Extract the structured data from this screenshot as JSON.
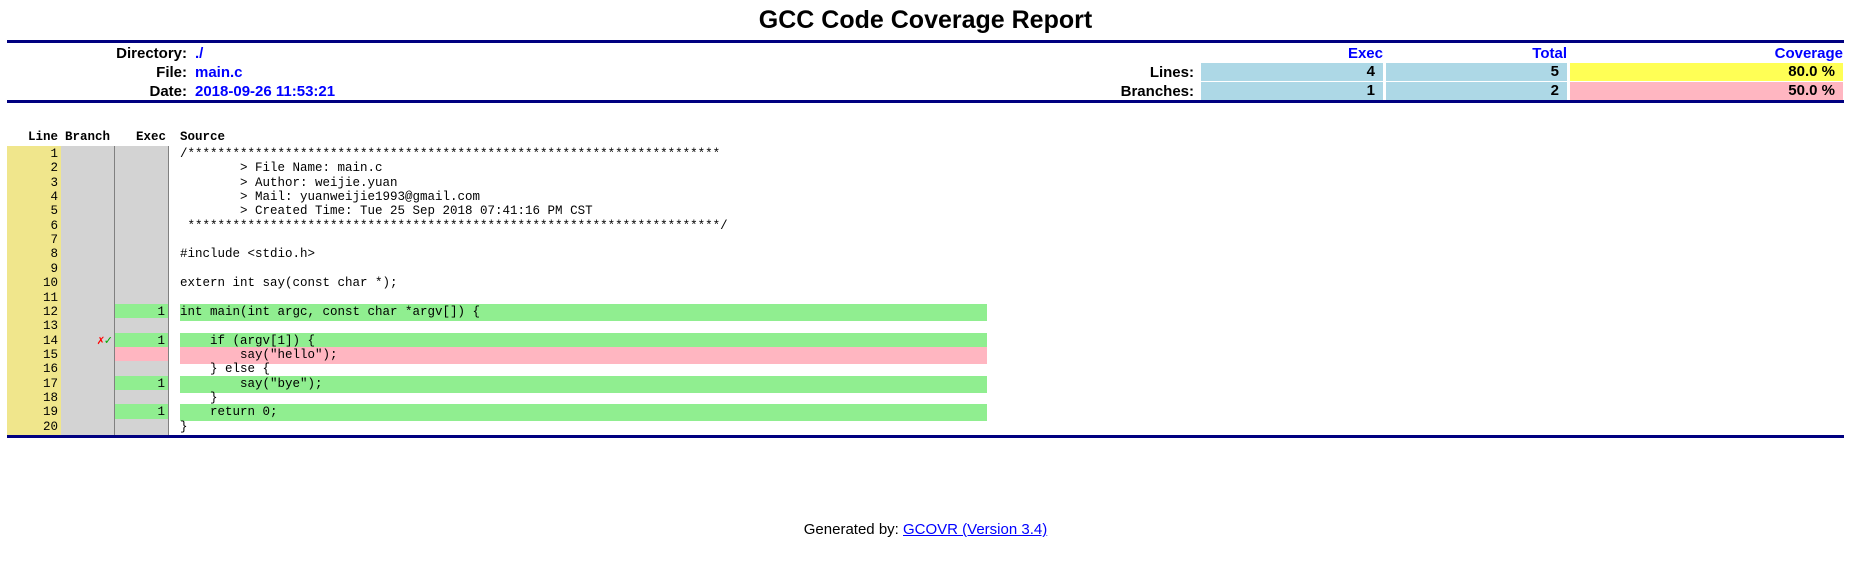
{
  "title": "GCC Code Coverage Report",
  "info": {
    "directory_label": "Directory:",
    "directory_value": "./",
    "file_label": "File:",
    "file_value": "main.c",
    "date_label": "Date:",
    "date_value": "2018-09-26 11:53:21"
  },
  "summary": {
    "col_exec": "Exec",
    "col_total": "Total",
    "col_coverage": "Coverage",
    "lines_label": "Lines:",
    "lines_exec": "4",
    "lines_total": "5",
    "lines_coverage": "80.0 %",
    "branches_label": "Branches:",
    "branches_exec": "1",
    "branches_total": "2",
    "branches_coverage": "50.0 %",
    "colors": {
      "count_bg": "#add8e6",
      "high_bg": "#ffff55",
      "low_bg": "#ffb6c1"
    }
  },
  "table_headers": {
    "line": "Line",
    "branch": "Branch",
    "exec": "Exec",
    "source": "Source"
  },
  "lines": [
    {
      "n": "1",
      "branch": "",
      "exec": "",
      "status": "none",
      "src": "/***********************************************************************"
    },
    {
      "n": "2",
      "branch": "",
      "exec": "",
      "status": "none",
      "src": "        > File Name: main.c"
    },
    {
      "n": "3",
      "branch": "",
      "exec": "",
      "status": "none",
      "src": "        > Author: weijie.yuan"
    },
    {
      "n": "4",
      "branch": "",
      "exec": "",
      "status": "none",
      "src": "        > Mail: yuanweijie1993@gmail.com"
    },
    {
      "n": "5",
      "branch": "",
      "exec": "",
      "status": "none",
      "src": "        > Created Time: Tue 25 Sep 2018 07:41:16 PM CST"
    },
    {
      "n": "6",
      "branch": "",
      "exec": "",
      "status": "none",
      "src": " ***********************************************************************/"
    },
    {
      "n": "7",
      "branch": "",
      "exec": "",
      "status": "none",
      "src": ""
    },
    {
      "n": "8",
      "branch": "",
      "exec": "",
      "status": "none",
      "src": "#include <stdio.h>"
    },
    {
      "n": "9",
      "branch": "",
      "exec": "",
      "status": "none",
      "src": ""
    },
    {
      "n": "10",
      "branch": "",
      "exec": "",
      "status": "none",
      "src": "extern int say(const char *);"
    },
    {
      "n": "11",
      "branch": "",
      "exec": "",
      "status": "none",
      "src": ""
    },
    {
      "n": "12",
      "branch": "",
      "exec": "1",
      "status": "covered",
      "src": "int main(int argc, const char *argv[]) {"
    },
    {
      "n": "13",
      "branch": "",
      "exec": "",
      "status": "none",
      "src": ""
    },
    {
      "n": "14",
      "branch": "✗✓",
      "exec": "1",
      "status": "covered",
      "src": "    if (argv[1]) {"
    },
    {
      "n": "15",
      "branch": "",
      "exec": "",
      "status": "uncovered",
      "src": "        say(\"hello\");"
    },
    {
      "n": "16",
      "branch": "",
      "exec": "",
      "status": "none",
      "src": "    } else {"
    },
    {
      "n": "17",
      "branch": "",
      "exec": "1",
      "status": "covered",
      "src": "        say(\"bye\");"
    },
    {
      "n": "18",
      "branch": "",
      "exec": "",
      "status": "none",
      "src": "    }"
    },
    {
      "n": "19",
      "branch": "",
      "exec": "1",
      "status": "covered",
      "src": "    return 0;"
    },
    {
      "n": "20",
      "branch": "",
      "exec": "",
      "status": "none",
      "src": "}"
    }
  ],
  "footer": {
    "prefix": "Generated by: ",
    "link_text": "GCOVR (Version 3.4)"
  }
}
